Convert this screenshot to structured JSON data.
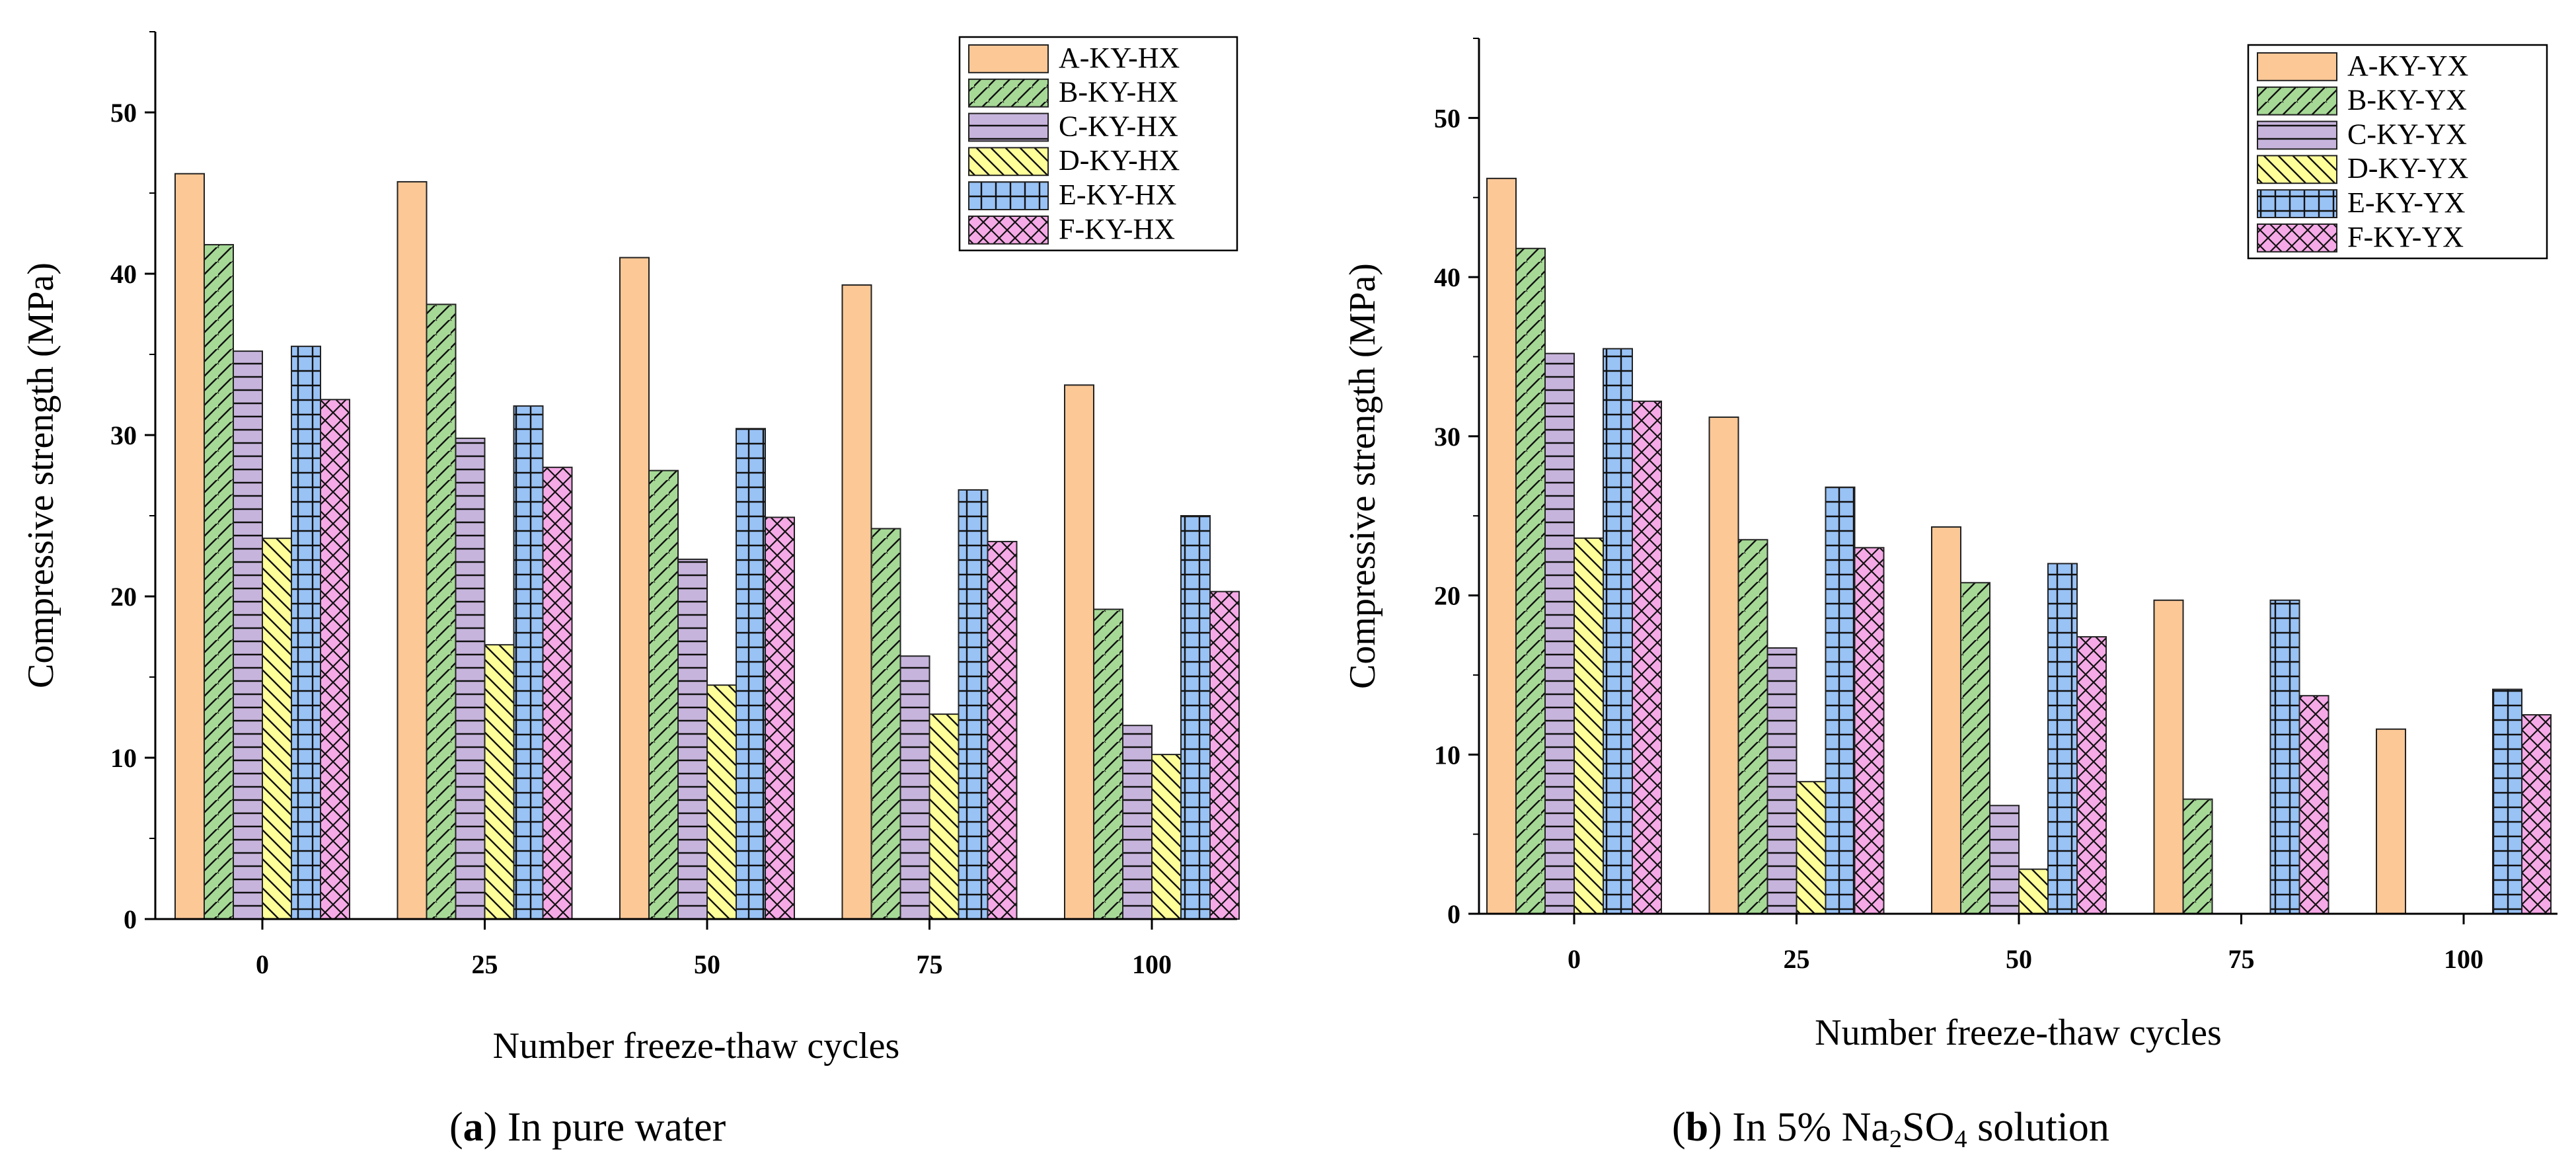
{
  "chart_data": [
    {
      "type": "bar",
      "caption": {
        "letter": "a",
        "text": "In pure water"
      },
      "xlabel": "Number freeze-thaw cycles",
      "ylabel": "Compressive strength (MPa)",
      "ylim": [
        0,
        55
      ],
      "yticks": [
        0,
        10,
        20,
        30,
        40,
        50
      ],
      "categories": [
        "0",
        "25",
        "50",
        "75",
        "100"
      ],
      "legend_position": "top-right",
      "series": [
        {
          "name": "A-KY-HX",
          "color": "#fbc896",
          "pattern": "solid",
          "values": [
            46.2,
            45.7,
            41.0,
            39.3,
            33.1
          ]
        },
        {
          "name": "B-KY-HX",
          "color": "#a6d996",
          "pattern": "diag",
          "values": [
            41.8,
            38.1,
            27.8,
            24.2,
            19.2
          ]
        },
        {
          "name": "C-KY-HX",
          "color": "#c7b4dc",
          "pattern": "hlines",
          "values": [
            35.2,
            29.8,
            22.3,
            16.3,
            12.0
          ]
        },
        {
          "name": "D-KY-HX",
          "color": "#ffff99",
          "pattern": "bdiag",
          "values": [
            23.6,
            17.0,
            14.5,
            12.7,
            10.2
          ]
        },
        {
          "name": "E-KY-HX",
          "color": "#99c2f5",
          "pattern": "grid",
          "values": [
            35.5,
            31.8,
            30.4,
            26.6,
            25.0
          ]
        },
        {
          "name": "F-KY-HX",
          "color": "#f5a9e6",
          "pattern": "cross",
          "values": [
            32.2,
            28.0,
            24.9,
            23.4,
            20.3
          ]
        }
      ]
    },
    {
      "type": "bar",
      "caption": {
        "letter": "b",
        "text_before": "In 5% Na",
        "sub1": "2",
        "text_mid": "SO",
        "sub2": "4",
        "text_after": " solution"
      },
      "xlabel": "Number freeze-thaw cycles",
      "ylabel": "Compressive strength (MPa)",
      "ylim": [
        0,
        55
      ],
      "yticks": [
        0,
        10,
        20,
        30,
        40,
        50
      ],
      "categories": [
        "0",
        "25",
        "50",
        "75",
        "100"
      ],
      "legend_position": "top-right",
      "series": [
        {
          "name": "A-KY-YX",
          "color": "#fbc896",
          "pattern": "solid",
          "values": [
            46.2,
            31.2,
            24.3,
            19.7,
            11.6
          ]
        },
        {
          "name": "B-KY-YX",
          "color": "#a6d996",
          "pattern": "diag",
          "values": [
            41.8,
            23.5,
            20.8,
            7.2,
            0
          ]
        },
        {
          "name": "C-KY-YX",
          "color": "#c7b4dc",
          "pattern": "hlines",
          "values": [
            35.2,
            16.7,
            6.8,
            0,
            0
          ]
        },
        {
          "name": "D-KY-YX",
          "color": "#ffff99",
          "pattern": "bdiag",
          "values": [
            23.6,
            8.3,
            2.8,
            0,
            0
          ]
        },
        {
          "name": "E-KY-YX",
          "color": "#99c2f5",
          "pattern": "grid",
          "values": [
            35.5,
            26.8,
            22.0,
            19.7,
            14.1
          ]
        },
        {
          "name": "F-KY-YX",
          "color": "#f5a9e6",
          "pattern": "cross",
          "values": [
            32.2,
            23.0,
            17.4,
            13.7,
            12.5
          ]
        }
      ]
    }
  ]
}
